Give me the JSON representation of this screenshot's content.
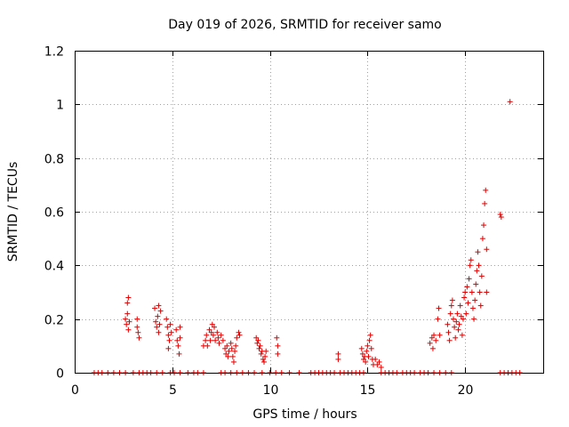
{
  "chart_data": {
    "type": "scatter",
    "title": "Day 019 of 2026, SRMTID for receiver samo",
    "xlabel": "GPS time / hours",
    "ylabel": "SRMTID / TECUs",
    "xlim": [
      0,
      24
    ],
    "ylim": [
      0,
      1.2
    ],
    "xticks": [
      0,
      5,
      10,
      15,
      20
    ],
    "xtick_labels": [
      "0",
      "5",
      "10",
      "15",
      "20"
    ],
    "yticks": [
      0,
      0.2,
      0.4,
      0.6,
      0.8,
      1.0,
      1.2
    ],
    "ytick_labels": [
      "0",
      "0.2",
      "0.4",
      "0.6",
      "0.8",
      "1",
      "1.2"
    ],
    "grid": true,
    "marker": "+",
    "color": "#e00000",
    "series": [
      {
        "name": "SRMTID",
        "points": [
          [
            1.0,
            0
          ],
          [
            1.2,
            0
          ],
          [
            1.4,
            0
          ],
          [
            1.7,
            0
          ],
          [
            2.0,
            0
          ],
          [
            2.3,
            0
          ],
          [
            2.6,
            0
          ],
          [
            3.0,
            0
          ],
          [
            3.3,
            0
          ],
          [
            3.5,
            0
          ],
          [
            3.7,
            0
          ],
          [
            3.9,
            0
          ],
          [
            4.2,
            0
          ],
          [
            4.5,
            0
          ],
          [
            4.9,
            0
          ],
          [
            5.1,
            0
          ],
          [
            5.4,
            0
          ],
          [
            5.8,
            0
          ],
          [
            6.1,
            0
          ],
          [
            6.3,
            0
          ],
          [
            6.6,
            0
          ],
          [
            7.5,
            0
          ],
          [
            7.7,
            0
          ],
          [
            8.0,
            0
          ],
          [
            8.3,
            0
          ],
          [
            8.6,
            0
          ],
          [
            8.9,
            0
          ],
          [
            9.2,
            0
          ],
          [
            9.6,
            0
          ],
          [
            10.0,
            0
          ],
          [
            10.3,
            0
          ],
          [
            10.6,
            0
          ],
          [
            11.0,
            0
          ],
          [
            11.5,
            0
          ],
          [
            12.1,
            0
          ],
          [
            12.3,
            0
          ],
          [
            12.5,
            0
          ],
          [
            12.7,
            0
          ],
          [
            12.9,
            0
          ],
          [
            13.1,
            0
          ],
          [
            13.3,
            0
          ],
          [
            13.6,
            0
          ],
          [
            13.8,
            0
          ],
          [
            14.0,
            0
          ],
          [
            14.2,
            0
          ],
          [
            14.4,
            0
          ],
          [
            14.6,
            0
          ],
          [
            14.8,
            0
          ],
          [
            15.7,
            0
          ],
          [
            15.9,
            0
          ],
          [
            16.1,
            0
          ],
          [
            16.3,
            0
          ],
          [
            16.5,
            0
          ],
          [
            16.8,
            0
          ],
          [
            17.0,
            0
          ],
          [
            17.2,
            0
          ],
          [
            17.4,
            0
          ],
          [
            17.7,
            0
          ],
          [
            17.9,
            0
          ],
          [
            18.1,
            0
          ],
          [
            18.4,
            0
          ],
          [
            18.7,
            0
          ],
          [
            19.0,
            0
          ],
          [
            19.3,
            0
          ],
          [
            21.8,
            0
          ],
          [
            22.0,
            0
          ],
          [
            22.2,
            0
          ],
          [
            22.4,
            0
          ],
          [
            22.6,
            0
          ],
          [
            22.8,
            0
          ],
          [
            2.6,
            0.2
          ],
          [
            2.65,
            0.18
          ],
          [
            2.7,
            0.22
          ],
          [
            2.7,
            0.26
          ],
          [
            2.75,
            0.28
          ],
          [
            2.75,
            0.16
          ],
          [
            2.8,
            0.19
          ],
          [
            3.2,
            0.2
          ],
          [
            3.2,
            0.17
          ],
          [
            3.25,
            0.15
          ],
          [
            3.3,
            0.13
          ],
          [
            4.1,
            0.24
          ],
          [
            4.15,
            0.19
          ],
          [
            4.2,
            0.17
          ],
          [
            4.25,
            0.21
          ],
          [
            4.3,
            0.25
          ],
          [
            4.3,
            0.15
          ],
          [
            4.35,
            0.18
          ],
          [
            4.4,
            0.23
          ],
          [
            4.7,
            0.2
          ],
          [
            4.75,
            0.17
          ],
          [
            4.8,
            0.14
          ],
          [
            4.8,
            0.09
          ],
          [
            4.85,
            0.12
          ],
          [
            4.9,
            0.18
          ],
          [
            4.95,
            0.15
          ],
          [
            5.2,
            0.16
          ],
          [
            5.25,
            0.12
          ],
          [
            5.3,
            0.1
          ],
          [
            5.35,
            0.07
          ],
          [
            5.4,
            0.13
          ],
          [
            5.4,
            0.17
          ],
          [
            6.6,
            0.1
          ],
          [
            6.7,
            0.12
          ],
          [
            6.75,
            0.14
          ],
          [
            6.8,
            0.1
          ],
          [
            6.9,
            0.16
          ],
          [
            6.95,
            0.12
          ],
          [
            7.0,
            0.15
          ],
          [
            7.05,
            0.18
          ],
          [
            7.1,
            0.14
          ],
          [
            7.15,
            0.17
          ],
          [
            7.2,
            0.12
          ],
          [
            7.3,
            0.15
          ],
          [
            7.35,
            0.13
          ],
          [
            7.4,
            0.11
          ],
          [
            7.5,
            0.14
          ],
          [
            7.6,
            0.12
          ],
          [
            7.7,
            0.09
          ],
          [
            7.75,
            0.07
          ],
          [
            7.8,
            0.1
          ],
          [
            7.85,
            0.06
          ],
          [
            7.9,
            0.08
          ],
          [
            8.0,
            0.11
          ],
          [
            8.05,
            0.09
          ],
          [
            8.1,
            0.06
          ],
          [
            8.15,
            0.04
          ],
          [
            8.2,
            0.08
          ],
          [
            8.25,
            0.1
          ],
          [
            8.3,
            0.13
          ],
          [
            8.4,
            0.15
          ],
          [
            8.45,
            0.14
          ],
          [
            9.3,
            0.13
          ],
          [
            9.35,
            0.11
          ],
          [
            9.4,
            0.12
          ],
          [
            9.45,
            0.09
          ],
          [
            9.5,
            0.1
          ],
          [
            9.55,
            0.07
          ],
          [
            9.6,
            0.08
          ],
          [
            9.65,
            0.05
          ],
          [
            9.7,
            0.04
          ],
          [
            9.75,
            0.06
          ],
          [
            9.8,
            0.08
          ],
          [
            10.35,
            0.13
          ],
          [
            10.4,
            0.1
          ],
          [
            10.4,
            0.07
          ],
          [
            13.5,
            0.07
          ],
          [
            13.5,
            0.05
          ],
          [
            14.7,
            0.09
          ],
          [
            14.75,
            0.07
          ],
          [
            14.8,
            0.05
          ],
          [
            14.85,
            0.06
          ],
          [
            14.9,
            0.04
          ],
          [
            14.95,
            0.08
          ],
          [
            15.0,
            0.1
          ],
          [
            15.05,
            0.06
          ],
          [
            15.1,
            0.12
          ],
          [
            15.15,
            0.14
          ],
          [
            15.2,
            0.09
          ],
          [
            15.25,
            0.05
          ],
          [
            15.3,
            0.03
          ],
          [
            15.4,
            0.05
          ],
          [
            15.5,
            0.03
          ],
          [
            15.6,
            0.04
          ],
          [
            15.7,
            0.02
          ],
          [
            18.2,
            0.11
          ],
          [
            18.3,
            0.13
          ],
          [
            18.35,
            0.09
          ],
          [
            18.4,
            0.14
          ],
          [
            18.5,
            0.12
          ],
          [
            18.6,
            0.2
          ],
          [
            18.65,
            0.24
          ],
          [
            18.7,
            0.14
          ],
          [
            19.1,
            0.18
          ],
          [
            19.15,
            0.15
          ],
          [
            19.2,
            0.12
          ],
          [
            19.25,
            0.22
          ],
          [
            19.3,
            0.25
          ],
          [
            19.35,
            0.27
          ],
          [
            19.4,
            0.2
          ],
          [
            19.45,
            0.17
          ],
          [
            19.5,
            0.13
          ],
          [
            19.55,
            0.19
          ],
          [
            19.6,
            0.22
          ],
          [
            19.65,
            0.16
          ],
          [
            19.7,
            0.18
          ],
          [
            19.75,
            0.25
          ],
          [
            19.8,
            0.21
          ],
          [
            19.85,
            0.14
          ],
          [
            19.9,
            0.2
          ],
          [
            19.95,
            0.28
          ],
          [
            20.0,
            0.3
          ],
          [
            20.05,
            0.22
          ],
          [
            20.1,
            0.32
          ],
          [
            20.15,
            0.26
          ],
          [
            20.2,
            0.35
          ],
          [
            20.25,
            0.4
          ],
          [
            20.3,
            0.42
          ],
          [
            20.35,
            0.3
          ],
          [
            20.4,
            0.24
          ],
          [
            20.45,
            0.2
          ],
          [
            20.5,
            0.27
          ],
          [
            20.55,
            0.33
          ],
          [
            20.6,
            0.38
          ],
          [
            20.65,
            0.45
          ],
          [
            20.7,
            0.4
          ],
          [
            20.75,
            0.3
          ],
          [
            20.8,
            0.25
          ],
          [
            20.85,
            0.36
          ],
          [
            20.9,
            0.5
          ],
          [
            20.95,
            0.55
          ],
          [
            21.0,
            0.63
          ],
          [
            21.05,
            0.68
          ],
          [
            21.1,
            0.46
          ],
          [
            21.1,
            0.3
          ],
          [
            21.8,
            0.59
          ],
          [
            21.85,
            0.58
          ],
          [
            22.3,
            1.01
          ]
        ]
      }
    ]
  }
}
